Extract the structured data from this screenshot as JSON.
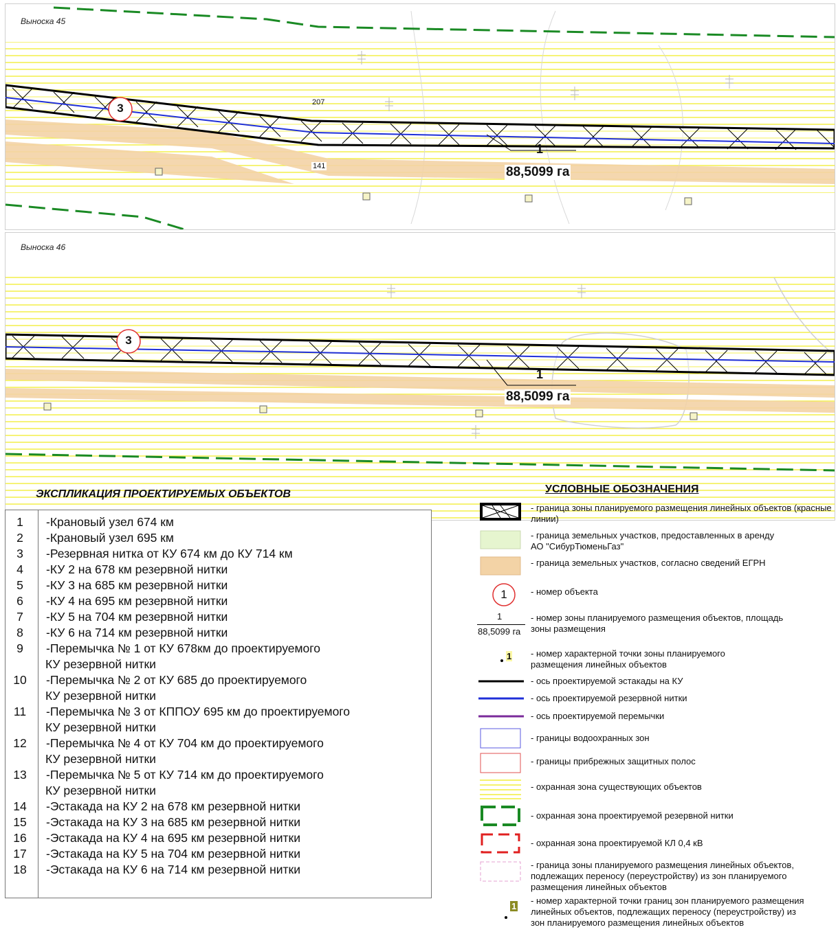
{
  "map": {
    "inset_45": {
      "label": "Выноска 45",
      "object_number": "3",
      "zone_number": "1",
      "zone_area": "88,5099 га",
      "point_labels": [
        "207",
        "141"
      ]
    },
    "inset_46": {
      "label": "Выноска 46",
      "object_number": "3",
      "zone_number": "1",
      "zone_area": "88,5099 га"
    }
  },
  "explication": {
    "title": "ЭКСПЛИКАЦИЯ ПРОЕКТИРУЕМЫХ ОБЪЕКТОВ",
    "rows": [
      {
        "num": "1",
        "text": "-Крановый узел 674 км"
      },
      {
        "num": "2",
        "text": "-Крановый узел 695 км"
      },
      {
        "num": "3",
        "text": "-Резервная нитка от КУ 674 км до КУ 714 км"
      },
      {
        "num": "4",
        "text": "-КУ 2 на 678 км резервной нитки"
      },
      {
        "num": "5",
        "text": "-КУ 3 на 685 км резервной нитки"
      },
      {
        "num": "6",
        "text": "-КУ 4 на 695 км резервной нитки"
      },
      {
        "num": "7",
        "text": "-КУ 5 на 704 км резервной нитки"
      },
      {
        "num": "8",
        "text": "-КУ 6 на 714 км резервной нитки"
      },
      {
        "num": "9",
        "text": "-Перемычка № 1 от КУ 678км до проектируемого",
        "text2": "КУ резервной нитки"
      },
      {
        "num": "10",
        "text": "-Перемычка № 2 от КУ 685 до проектируемого",
        "text2": "КУ резервной нитки"
      },
      {
        "num": "11",
        "text": "-Перемычка № 3 от КППОУ 695 км до проектируемого",
        "text2": "КУ резервной нитки"
      },
      {
        "num": "12",
        "text": "-Перемычка № 4 от КУ 704 км до проектируемого",
        "text2": "КУ резервной нитки"
      },
      {
        "num": "13",
        "text": "-Перемычка № 5 от КУ 714 км до проектируемого",
        "text2": "КУ резервной нитки"
      },
      {
        "num": "14",
        "text": "-Эстакада на КУ 2 на 678 км резервной нитки"
      },
      {
        "num": "15",
        "text": "-Эстакада на КУ 3 на 685 км резервной нитки"
      },
      {
        "num": "16",
        "text": "-Эстакада на КУ 4 на 695 км резервной нитки"
      },
      {
        "num": "17",
        "text": "-Эстакада на КУ 5 на 704 км резервной нитки"
      },
      {
        "num": "18",
        "text": "-Эстакада на КУ 6 на 714 км резервной нитки"
      }
    ]
  },
  "legend": {
    "title": "УСЛОВНЫЕ ОБОЗНАЧЕНИЯ",
    "sample_object_number": "1",
    "sample_zone_number": "1",
    "sample_zone_area": "88,5099 га",
    "sample_point_number": "1",
    "sample_point_number_2": "1",
    "items": [
      {
        "id": "planned-zone-border",
        "text": "- граница зоны планируемого размещения линейных объектов (красные линии)"
      },
      {
        "id": "leased-land",
        "text": "- граница земельных участков, предоставленных в аренду АО \"СибурТюменьГаз\""
      },
      {
        "id": "egrn-land",
        "text": "- граница земельных участков, согласно сведений ЕГРН"
      },
      {
        "id": "object-number",
        "text": "- номер объекта"
      },
      {
        "id": "zone-number-area",
        "text": "- номер зоны планируемого размещения объектов, площадь зоны размещения"
      },
      {
        "id": "characteristic-point",
        "text": "- номер характерной точки зоны планируемого размещения линейных объектов"
      },
      {
        "id": "trestle-axis",
        "text": "- ось проектируемой эстакады на КУ"
      },
      {
        "id": "reserve-line-axis",
        "text": "- ось проектируемой резервной нитки"
      },
      {
        "id": "jumper-axis",
        "text": "- ось проектируемой перемычки"
      },
      {
        "id": "water-protection",
        "text": "- границы водоохранных зон"
      },
      {
        "id": "coastal-strip",
        "text": "- границы прибрежных защитных полос"
      },
      {
        "id": "existing-protect-zone",
        "text": "- охранная зона существующих объектов"
      },
      {
        "id": "reserve-protect-zone",
        "text": "- охранная зона проектируемой резервной нитки"
      },
      {
        "id": "kl-protect-zone",
        "text": "- охранная зона проектируемой КЛ 0,4 кВ"
      },
      {
        "id": "relocation-zone",
        "text": "- граница зоны планируемого размещения линейных объектов, подлежащих переносу (переустройству) из зон планируемого размещения линейных объектов"
      },
      {
        "id": "relocation-point",
        "text": "- номер характерной точки границ зон планируемого размещения линейных объектов, подлежащих переносу (переустройству) из зон планируемого размещения линейных объектов"
      }
    ]
  },
  "colors": {
    "yellow_hatch": "#f2ee3a",
    "egrn_fill": "#f3d3a6",
    "reserve_line": "#1f2fd8",
    "jumper_line": "#7a2a9a",
    "green_dash": "#1a8a24",
    "red_dash": "#e02020"
  }
}
